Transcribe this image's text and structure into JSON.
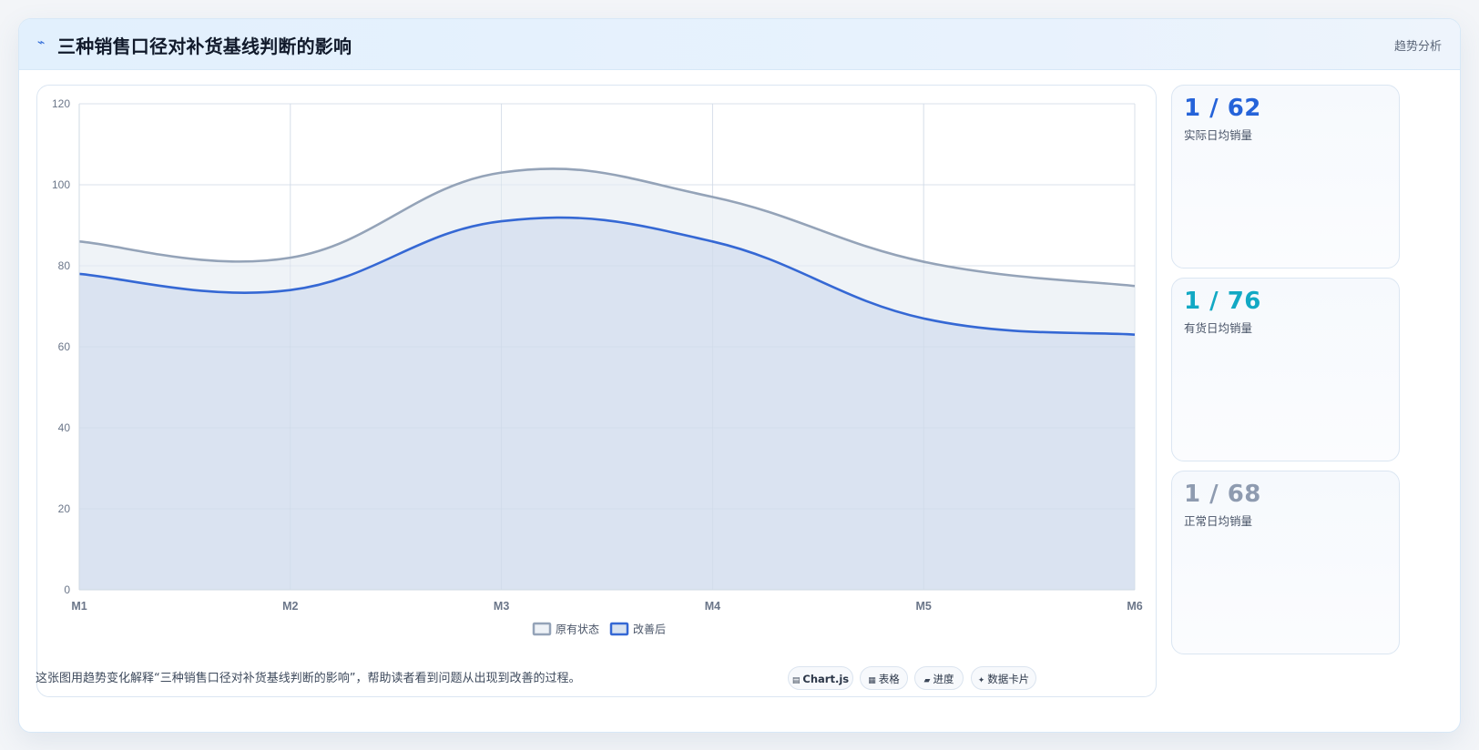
{
  "header": {
    "icon": "bolt-icon",
    "title": "三种销售口径对补货基线判断的影响",
    "tag": "趋势分析"
  },
  "stats": [
    {
      "value": "1 / 62",
      "label": "实际日均销量",
      "color": "#2563d9"
    },
    {
      "value": "1 / 76",
      "label": "有货日均销量",
      "color": "#12a9c4"
    },
    {
      "value": "1 / 68",
      "label": "正常日均销量",
      "color": "#8e9bb0"
    }
  ],
  "caption": "这张图用趋势变化解释“三种销售口径对补货基线判断的影响”，帮助读者看到问题从出现到改善的过程。",
  "chips": [
    {
      "icon": "chart-icon",
      "glyph": "▤",
      "label": "Chart.js"
    },
    {
      "icon": "table-icon",
      "glyph": "▦",
      "label": "表格"
    },
    {
      "icon": "progress-icon",
      "glyph": "▰",
      "label": "进度"
    },
    {
      "icon": "sparkle-icon",
      "glyph": "✦",
      "label": "数据卡片"
    }
  ],
  "chart_data": {
    "type": "area",
    "categories": [
      "M1",
      "M2",
      "M3",
      "M4",
      "M5",
      "M6"
    ],
    "ylim": [
      0,
      120
    ],
    "yticks": [
      0,
      20,
      40,
      60,
      80,
      100,
      120
    ],
    "grid": true,
    "legend_position": "bottom",
    "series": [
      {
        "name": "原有状态",
        "values": [
          86,
          82,
          103,
          97,
          81,
          75
        ],
        "color": "#94a3b8",
        "fill": "#eef2f7"
      },
      {
        "name": "改善后",
        "values": [
          78,
          74,
          91,
          86,
          67,
          63
        ],
        "color": "#3568d4",
        "fill": "#d8e2f0"
      }
    ]
  }
}
